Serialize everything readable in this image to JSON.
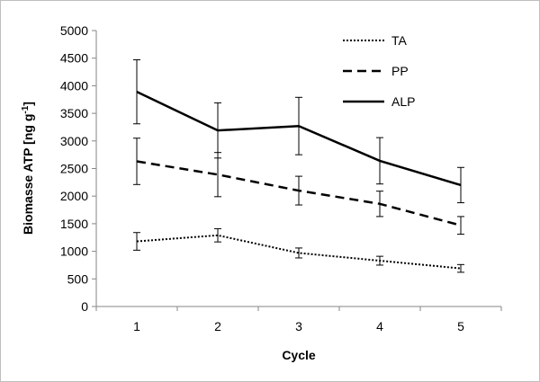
{
  "chart_data": {
    "type": "line",
    "title": "",
    "xlabel": "Cycle",
    "ylabel": "Biomasse ATP [ng g",
    "ylabel_sup": "-1",
    "ylabel_end": "]",
    "categories": [
      1,
      2,
      3,
      4,
      5
    ],
    "ylim": [
      0,
      5000
    ],
    "yticks": [
      0,
      500,
      1000,
      1500,
      2000,
      2500,
      3000,
      3500,
      4000,
      4500,
      5000
    ],
    "grid": false,
    "legend_position": "top-right",
    "series": [
      {
        "name": "TA",
        "line_style": "dotted",
        "color": "#000000",
        "values": [
          1180,
          1290,
          970,
          830,
          690
        ],
        "errors": [
          160,
          120,
          90,
          80,
          70
        ]
      },
      {
        "name": "PP",
        "line_style": "dashed",
        "color": "#000000",
        "values": [
          2630,
          2390,
          2100,
          1860,
          1470
        ],
        "errors": [
          420,
          400,
          260,
          230,
          160
        ]
      },
      {
        "name": "ALP",
        "line_style": "solid",
        "color": "#000000",
        "values": [
          3890,
          3190,
          3270,
          2640,
          2200
        ],
        "errors": [
          580,
          500,
          520,
          420,
          320
        ]
      }
    ]
  }
}
